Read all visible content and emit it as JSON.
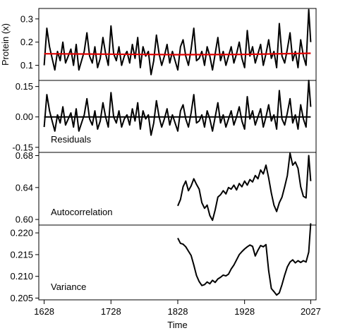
{
  "chart_data": {
    "type": "line",
    "xlabel": "Time",
    "xlim": [
      1620,
      2035
    ],
    "xticks": [
      1628,
      1728,
      1828,
      1928,
      2027
    ],
    "panels": [
      {
        "id": "protein",
        "label": "",
        "ylabel": "Protein (x)",
        "ylim": [
          0.035,
          0.345
        ],
        "yticks": [
          0.1,
          0.2,
          0.3
        ],
        "ytick_labels": [
          "0.1",
          "0.2",
          "0.3"
        ],
        "series": [
          {
            "kind": "data",
            "color": "#000000",
            "x": [
              1628,
              1632,
              1636,
              1640,
              1644,
              1648,
              1652,
              1656,
              1660,
              1664,
              1668,
              1672,
              1676,
              1680,
              1684,
              1688,
              1692,
              1696,
              1700,
              1704,
              1708,
              1712,
              1716,
              1720,
              1724,
              1728,
              1732,
              1736,
              1740,
              1744,
              1748,
              1752,
              1756,
              1760,
              1764,
              1768,
              1772,
              1776,
              1780,
              1784,
              1788,
              1792,
              1796,
              1800,
              1804,
              1808,
              1812,
              1816,
              1820,
              1824,
              1828,
              1832,
              1836,
              1840,
              1844,
              1848,
              1852,
              1856,
              1860,
              1864,
              1868,
              1872,
              1876,
              1880,
              1884,
              1888,
              1892,
              1896,
              1900,
              1904,
              1908,
              1912,
              1916,
              1920,
              1924,
              1928,
              1932,
              1936,
              1940,
              1944,
              1948,
              1952,
              1956,
              1960,
              1964,
              1968,
              1972,
              1976,
              1980,
              1984,
              1988,
              1992,
              1996,
              2000,
              2004,
              2008,
              2012,
              2016,
              2020,
              2024,
              2027
            ],
            "y": [
              0.1,
              0.26,
              0.18,
              0.13,
              0.08,
              0.16,
              0.12,
              0.2,
              0.11,
              0.14,
              0.17,
              0.1,
              0.19,
              0.08,
              0.12,
              0.16,
              0.24,
              0.14,
              0.11,
              0.18,
              0.09,
              0.13,
              0.22,
              0.15,
              0.1,
              0.27,
              0.15,
              0.12,
              0.18,
              0.1,
              0.14,
              0.16,
              0.11,
              0.19,
              0.13,
              0.22,
              0.09,
              0.18,
              0.14,
              0.16,
              0.06,
              0.12,
              0.23,
              0.15,
              0.1,
              0.14,
              0.19,
              0.11,
              0.16,
              0.12,
              0.08,
              0.18,
              0.21,
              0.14,
              0.1,
              0.17,
              0.26,
              0.12,
              0.13,
              0.16,
              0.1,
              0.18,
              0.14,
              0.08,
              0.15,
              0.22,
              0.12,
              0.16,
              0.1,
              0.14,
              0.18,
              0.11,
              0.15,
              0.2,
              0.13,
              0.09,
              0.25,
              0.14,
              0.18,
              0.11,
              0.15,
              0.19,
              0.1,
              0.15,
              0.21,
              0.13,
              0.16,
              0.09,
              0.28,
              0.14,
              0.11,
              0.17,
              0.24,
              0.12,
              0.16,
              0.09,
              0.21,
              0.14,
              0.1,
              0.34,
              0.2
            ]
          },
          {
            "kind": "trend",
            "color": "#e00000",
            "x": [
              1628,
              1728,
              1828,
              1928,
              2027
            ],
            "y": [
              0.15,
              0.148,
              0.146,
              0.147,
              0.152
            ]
          }
        ]
      },
      {
        "id": "residuals",
        "label": "Residuals",
        "ylabel": "",
        "ylim": [
          -0.175,
          0.18
        ],
        "yticks": [
          -0.15,
          0.0,
          0.15
        ],
        "ytick_labels": [
          "-0.15",
          "0.00",
          "0.15"
        ],
        "series": [
          {
            "kind": "data",
            "color": "#000000",
            "x": [
              1628,
              1632,
              1636,
              1640,
              1644,
              1648,
              1652,
              1656,
              1660,
              1664,
              1668,
              1672,
              1676,
              1680,
              1684,
              1688,
              1692,
              1696,
              1700,
              1704,
              1708,
              1712,
              1716,
              1720,
              1724,
              1728,
              1732,
              1736,
              1740,
              1744,
              1748,
              1752,
              1756,
              1760,
              1764,
              1768,
              1772,
              1776,
              1780,
              1784,
              1788,
              1792,
              1796,
              1800,
              1804,
              1808,
              1812,
              1816,
              1820,
              1824,
              1828,
              1832,
              1836,
              1840,
              1844,
              1848,
              1852,
              1856,
              1860,
              1864,
              1868,
              1872,
              1876,
              1880,
              1884,
              1888,
              1892,
              1896,
              1900,
              1904,
              1908,
              1912,
              1916,
              1920,
              1924,
              1928,
              1932,
              1936,
              1940,
              1944,
              1948,
              1952,
              1956,
              1960,
              1964,
              1968,
              1972,
              1976,
              1980,
              1984,
              1988,
              1992,
              1996,
              2000,
              2004,
              2008,
              2012,
              2016,
              2020,
              2024,
              2027
            ],
            "y": [
              -0.05,
              0.11,
              0.03,
              -0.02,
              -0.07,
              0.01,
              -0.03,
              0.05,
              -0.04,
              -0.01,
              0.02,
              -0.05,
              0.04,
              -0.07,
              -0.03,
              0.01,
              0.09,
              -0.01,
              -0.04,
              0.03,
              -0.06,
              -0.02,
              0.07,
              0.0,
              -0.05,
              0.12,
              0.0,
              -0.03,
              0.03,
              -0.05,
              -0.01,
              0.01,
              -0.04,
              0.04,
              -0.02,
              0.07,
              -0.06,
              0.03,
              -0.01,
              0.01,
              -0.09,
              -0.03,
              0.08,
              0.0,
              -0.05,
              -0.01,
              0.04,
              -0.04,
              0.01,
              -0.03,
              -0.07,
              0.03,
              0.06,
              -0.01,
              -0.05,
              0.02,
              0.11,
              -0.03,
              -0.02,
              0.01,
              -0.05,
              0.03,
              -0.01,
              -0.07,
              0.0,
              0.07,
              -0.03,
              0.01,
              -0.05,
              -0.01,
              0.03,
              -0.04,
              0.0,
              0.05,
              -0.02,
              -0.06,
              0.1,
              -0.01,
              0.03,
              -0.04,
              0.0,
              0.04,
              -0.05,
              0.0,
              0.06,
              -0.02,
              0.01,
              -0.06,
              0.13,
              -0.01,
              -0.04,
              0.02,
              0.09,
              -0.03,
              0.01,
              -0.06,
              0.06,
              -0.01,
              -0.05,
              0.18,
              0.05
            ]
          }
        ]
      },
      {
        "id": "autocorrelation",
        "label": "Autocorrelation",
        "ylabel": "",
        "ylim": [
          0.593,
          0.684
        ],
        "yticks": [
          0.6,
          0.64,
          0.68
        ],
        "ytick_labels": [
          "0.60",
          "0.64",
          "0.68"
        ],
        "series": [
          {
            "kind": "data",
            "color": "#000000",
            "x": [
              1828,
              1832,
              1836,
              1840,
              1844,
              1848,
              1852,
              1856,
              1860,
              1864,
              1868,
              1872,
              1876,
              1880,
              1884,
              1888,
              1892,
              1896,
              1900,
              1904,
              1908,
              1912,
              1916,
              1920,
              1924,
              1928,
              1932,
              1936,
              1940,
              1944,
              1948,
              1952,
              1956,
              1960,
              1964,
              1968,
              1972,
              1976,
              1980,
              1984,
              1988,
              1992,
              1996,
              2000,
              2004,
              2008,
              2012,
              2016,
              2020,
              2024,
              2027
            ],
            "y": [
              0.617,
              0.625,
              0.641,
              0.648,
              0.636,
              0.642,
              0.651,
              0.644,
              0.638,
              0.621,
              0.614,
              0.618,
              0.605,
              0.599,
              0.612,
              0.628,
              0.631,
              0.636,
              0.632,
              0.64,
              0.638,
              0.643,
              0.637,
              0.645,
              0.641,
              0.648,
              0.643,
              0.65,
              0.647,
              0.655,
              0.651,
              0.662,
              0.657,
              0.668,
              0.652,
              0.633,
              0.618,
              0.61,
              0.621,
              0.628,
              0.641,
              0.655,
              0.683,
              0.668,
              0.672,
              0.664,
              0.641,
              0.629,
              0.627,
              0.68,
              0.648
            ]
          }
        ]
      },
      {
        "id": "variance",
        "label": "Variance",
        "ylabel": "",
        "ylim": [
          0.2046,
          0.2218
        ],
        "yticks": [
          0.205,
          0.21,
          0.215,
          0.22
        ],
        "ytick_labels": [
          "0.205",
          "0.210",
          "0.215",
          "0.220"
        ],
        "series": [
          {
            "kind": "data",
            "color": "#000000",
            "x": [
              1828,
              1832,
              1836,
              1840,
              1844,
              1848,
              1852,
              1856,
              1860,
              1864,
              1868,
              1872,
              1876,
              1880,
              1884,
              1888,
              1892,
              1896,
              1900,
              1904,
              1908,
              1912,
              1916,
              1920,
              1924,
              1928,
              1932,
              1936,
              1940,
              1944,
              1948,
              1952,
              1956,
              1960,
              1964,
              1968,
              1972,
              1976,
              1980,
              1984,
              1988,
              1992,
              1996,
              2000,
              2004,
              2008,
              2012,
              2016,
              2020,
              2024,
              2027
            ],
            "y": [
              0.2188,
              0.2176,
              0.2174,
              0.2168,
              0.2158,
              0.2148,
              0.2126,
              0.2102,
              0.2088,
              0.2079,
              0.2081,
              0.2087,
              0.2083,
              0.2091,
              0.2086,
              0.2094,
              0.2098,
              0.2103,
              0.2101,
              0.2105,
              0.2117,
              0.2126,
              0.2138,
              0.215,
              0.2157,
              0.2163,
              0.2168,
              0.2172,
              0.2169,
              0.2147,
              0.216,
              0.2171,
              0.2168,
              0.2173,
              0.2113,
              0.2072,
              0.2065,
              0.2057,
              0.2062,
              0.2081,
              0.2103,
              0.2122,
              0.2133,
              0.2138,
              0.2131,
              0.2136,
              0.2132,
              0.2136,
              0.2133,
              0.2156,
              0.2222
            ]
          }
        ]
      }
    ]
  }
}
